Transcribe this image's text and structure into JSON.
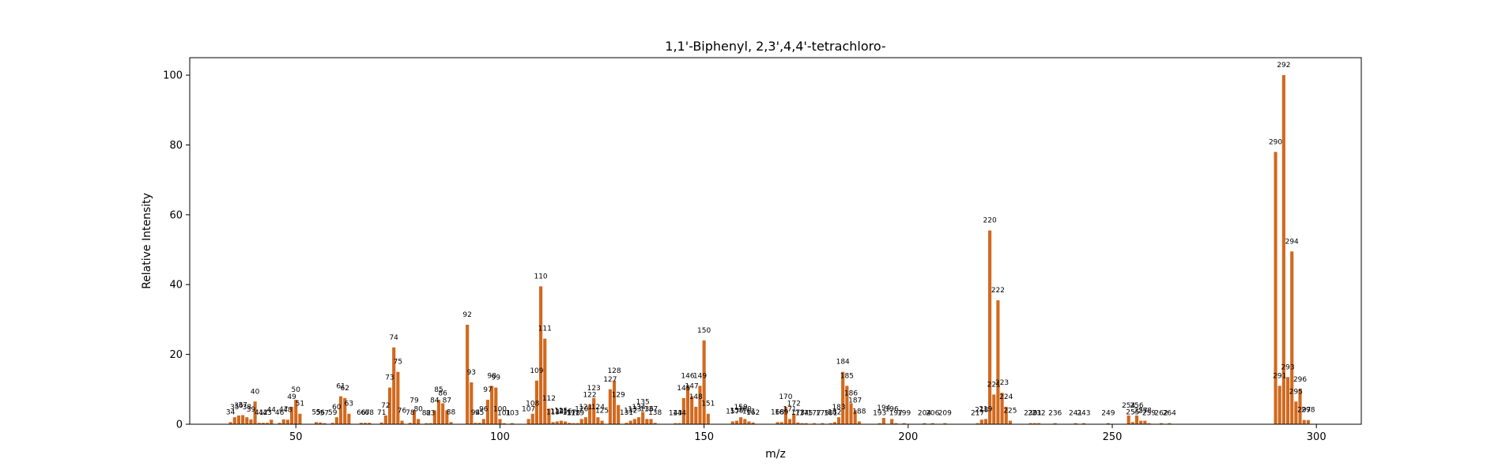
{
  "chart_data": {
    "type": "bar",
    "title": "1,1'-Biphenyl, 2,3',4,4'-tetrachloro-",
    "xlabel": "m/z",
    "ylabel": "Relative Intensity",
    "xlim": [
      24,
      311
    ],
    "ylim": [
      0,
      105
    ],
    "xticks": [
      50,
      100,
      150,
      200,
      250,
      300
    ],
    "yticks": [
      0,
      20,
      40,
      60,
      80,
      100
    ],
    "bar_color": "#d2691e",
    "grid": false,
    "peaks": [
      [
        34,
        0.6
      ],
      [
        35,
        2.0
      ],
      [
        36,
        2.5
      ],
      [
        37,
        2.6
      ],
      [
        38,
        2.0
      ],
      [
        39,
        1.4
      ],
      [
        40,
        6.5
      ],
      [
        41,
        0.4
      ],
      [
        42,
        0.4
      ],
      [
        43,
        0.4
      ],
      [
        44,
        1.3
      ],
      [
        46,
        0.4
      ],
      [
        47,
        1.4
      ],
      [
        48,
        1.3
      ],
      [
        49,
        5.0
      ],
      [
        50,
        7.0
      ],
      [
        51,
        3.0
      ],
      [
        55,
        0.6
      ],
      [
        56,
        0.5
      ],
      [
        57,
        0.3
      ],
      [
        59,
        0.4
      ],
      [
        60,
        2.0
      ],
      [
        61,
        8.0
      ],
      [
        62,
        7.5
      ],
      [
        63,
        3.0
      ],
      [
        66,
        0.4
      ],
      [
        67,
        0.4
      ],
      [
        68,
        0.4
      ],
      [
        71,
        0.5
      ],
      [
        72,
        2.5
      ],
      [
        73,
        10.5
      ],
      [
        74,
        22.0
      ],
      [
        75,
        15.0
      ],
      [
        76,
        1.0
      ],
      [
        78,
        0.4
      ],
      [
        79,
        4.0
      ],
      [
        80,
        1.5
      ],
      [
        82,
        0.3
      ],
      [
        83,
        0.3
      ],
      [
        84,
        4.0
      ],
      [
        85,
        7.0
      ],
      [
        86,
        6.0
      ],
      [
        87,
        4.0
      ],
      [
        88,
        0.6
      ],
      [
        92,
        28.5
      ],
      [
        93,
        12.0
      ],
      [
        94,
        0.4
      ],
      [
        95,
        0.4
      ],
      [
        96,
        1.5
      ],
      [
        97,
        7.0
      ],
      [
        98,
        11.0
      ],
      [
        99,
        10.5
      ],
      [
        100,
        1.5
      ],
      [
        101,
        0.3
      ],
      [
        103,
        0.3
      ],
      [
        107,
        1.5
      ],
      [
        108,
        3.0
      ],
      [
        109,
        12.5
      ],
      [
        110,
        39.5
      ],
      [
        111,
        24.5
      ],
      [
        112,
        4.5
      ],
      [
        113,
        0.6
      ],
      [
        114,
        0.8
      ],
      [
        115,
        1.0
      ],
      [
        116,
        0.8
      ],
      [
        117,
        0.4
      ],
      [
        118,
        0.3
      ],
      [
        119,
        0.3
      ],
      [
        120,
        1.5
      ],
      [
        121,
        2.0
      ],
      [
        122,
        5.5
      ],
      [
        123,
        7.5
      ],
      [
        124,
        2.0
      ],
      [
        125,
        1.0
      ],
      [
        127,
        10.0
      ],
      [
        128,
        12.5
      ],
      [
        129,
        5.5
      ],
      [
        131,
        0.4
      ],
      [
        132,
        1.0
      ],
      [
        133,
        1.5
      ],
      [
        134,
        2.0
      ],
      [
        135,
        3.5
      ],
      [
        136,
        1.5
      ],
      [
        137,
        1.5
      ],
      [
        138,
        0.4
      ],
      [
        143,
        0.3
      ],
      [
        144,
        0.3
      ],
      [
        145,
        7.5
      ],
      [
        146,
        11.0
      ],
      [
        147,
        8.0
      ],
      [
        148,
        5.0
      ],
      [
        149,
        11.0
      ],
      [
        150,
        24.0
      ],
      [
        151,
        3.0
      ],
      [
        157,
        0.8
      ],
      [
        158,
        1.0
      ],
      [
        159,
        2.0
      ],
      [
        160,
        1.5
      ],
      [
        161,
        0.8
      ],
      [
        162,
        0.5
      ],
      [
        168,
        0.6
      ],
      [
        169,
        0.6
      ],
      [
        170,
        5.0
      ],
      [
        171,
        1.5
      ],
      [
        172,
        3.0
      ],
      [
        173,
        0.5
      ],
      [
        174,
        0.3
      ],
      [
        175,
        0.3
      ],
      [
        177,
        0.3
      ],
      [
        179,
        0.3
      ],
      [
        181,
        0.3
      ],
      [
        182,
        0.6
      ],
      [
        183,
        2.0
      ],
      [
        184,
        15.0
      ],
      [
        185,
        11.0
      ],
      [
        186,
        6.0
      ],
      [
        187,
        4.0
      ],
      [
        188,
        0.8
      ],
      [
        193,
        0.3
      ],
      [
        194,
        1.8
      ],
      [
        196,
        1.5
      ],
      [
        197,
        0.3
      ],
      [
        199,
        0.3
      ],
      [
        204,
        0.3
      ],
      [
        206,
        0.3
      ],
      [
        209,
        0.3
      ],
      [
        217,
        0.3
      ],
      [
        218,
        1.3
      ],
      [
        219,
        1.5
      ],
      [
        220,
        55.5
      ],
      [
        221,
        8.5
      ],
      [
        222,
        35.5
      ],
      [
        223,
        9.0
      ],
      [
        224,
        5.0
      ],
      [
        225,
        1.0
      ],
      [
        230,
        0.3
      ],
      [
        231,
        0.3
      ],
      [
        232,
        0.3
      ],
      [
        236,
        0.3
      ],
      [
        241,
        0.3
      ],
      [
        243,
        0.3
      ],
      [
        249,
        0.3
      ],
      [
        254,
        2.5
      ],
      [
        255,
        0.6
      ],
      [
        256,
        2.5
      ],
      [
        257,
        1.0
      ],
      [
        258,
        1.0
      ],
      [
        259,
        0.3
      ],
      [
        262,
        0.3
      ],
      [
        264,
        0.3
      ],
      [
        290,
        78.0
      ],
      [
        291,
        11.0
      ],
      [
        292,
        100.0
      ],
      [
        293,
        13.5
      ],
      [
        294,
        49.5
      ],
      [
        295,
        6.5
      ],
      [
        296,
        10.0
      ],
      [
        297,
        1.2
      ],
      [
        298,
        1.2
      ]
    ]
  }
}
